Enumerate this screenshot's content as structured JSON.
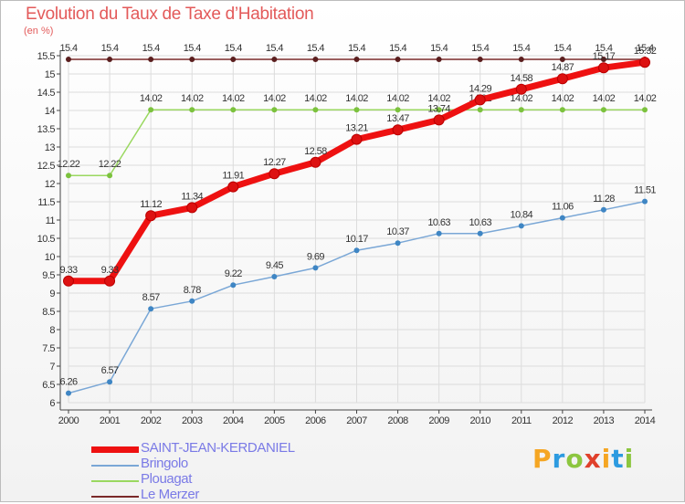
{
  "header": {
    "title": "Evolution du Taux de Taxe d’Habitation",
    "unit": "(en %)"
  },
  "logo": {
    "letters": [
      "P",
      "r",
      "o",
      "x",
      "i",
      "t",
      "i"
    ],
    "colors": [
      "#f5a623",
      "#2d9be0",
      "#8cc63f",
      "#e0402b",
      "#f5a623",
      "#2d9be0",
      "#8cc63f"
    ]
  },
  "chart_data": {
    "type": "line",
    "title": "Evolution du Taux de Taxe d’Habitation",
    "ylabel": "(en %)",
    "xlabel": "",
    "ylim": [
      6,
      15.5
    ],
    "yticks": [
      "6",
      "6.5",
      "7",
      "7.5",
      "8",
      "8.5",
      "9",
      "9.5",
      "10",
      "10.5",
      "11",
      "11.5",
      "12",
      "12.5",
      "13",
      "13.5",
      "14",
      "14.5",
      "15",
      "15.5"
    ],
    "categories": [
      "2000",
      "2001",
      "2002",
      "2003",
      "2004",
      "2005",
      "2006",
      "2007",
      "2008",
      "2009",
      "2010",
      "2011",
      "2012",
      "2013",
      "2014"
    ],
    "series": [
      {
        "name": "Le Merzer",
        "color": "#7a2a2a",
        "dot": "#5a1e1e",
        "values": [
          15.4,
          15.4,
          15.4,
          15.4,
          15.4,
          15.4,
          15.4,
          15.4,
          15.4,
          15.4,
          15.4,
          15.4,
          15.4,
          15.4,
          15.4
        ],
        "labels": [
          "15.4",
          "15.4",
          "15.4",
          "15.4",
          "15.4",
          "15.4",
          "15.4",
          "15.4",
          "15.4",
          "15.4",
          "15.4",
          "15.4",
          "15.4",
          "15.4",
          "15.4"
        ]
      },
      {
        "name": "Plouagat",
        "color": "#9ad860",
        "dot": "#7cc23e",
        "values": [
          12.22,
          12.22,
          14.02,
          14.02,
          14.02,
          14.02,
          14.02,
          14.02,
          14.02,
          14.02,
          14.02,
          14.02,
          14.02,
          14.02,
          14.02
        ],
        "labels": [
          "12.22",
          "12.22",
          "14.02",
          "14.02",
          "14.02",
          "14.02",
          "14.02",
          "14.02",
          "14.02",
          "14.02",
          "14.02",
          "14.02",
          "14.02",
          "14.02",
          "14.02"
        ]
      },
      {
        "name": "Bringolo",
        "color": "#7aa7d6",
        "dot": "#3f86c4",
        "values": [
          6.26,
          6.57,
          8.57,
          8.78,
          9.22,
          9.45,
          9.69,
          10.17,
          10.37,
          10.63,
          10.63,
          10.84,
          11.06,
          11.28,
          11.51
        ],
        "labels": [
          "6.26",
          "6.57",
          "8.57",
          "8.78",
          "9.22",
          "9.45",
          "9.69",
          "10.17",
          "10.37",
          "10.63",
          "10.63",
          "10.84",
          "11.06",
          "11.28",
          "11.51"
        ]
      },
      {
        "name": "SAINT-JEAN-KERDANIEL",
        "color": "#ee1111",
        "dot": "#dd1111",
        "values": [
          9.33,
          9.33,
          11.12,
          11.34,
          11.91,
          12.27,
          12.58,
          13.21,
          13.47,
          13.74,
          14.29,
          14.58,
          14.87,
          15.17,
          15.32
        ],
        "labels": [
          "9.33",
          "9.33",
          "11.12",
          "11.34",
          "11.91",
          "12.27",
          "12.58",
          "13.21",
          "13.47",
          "13.74",
          "14.29",
          "14.58",
          "14.87",
          "15.17",
          "15.32"
        ]
      }
    ],
    "legend_order": [
      "SAINT-JEAN-KERDANIEL",
      "Bringolo",
      "Plouagat",
      "Le Merzer"
    ]
  }
}
